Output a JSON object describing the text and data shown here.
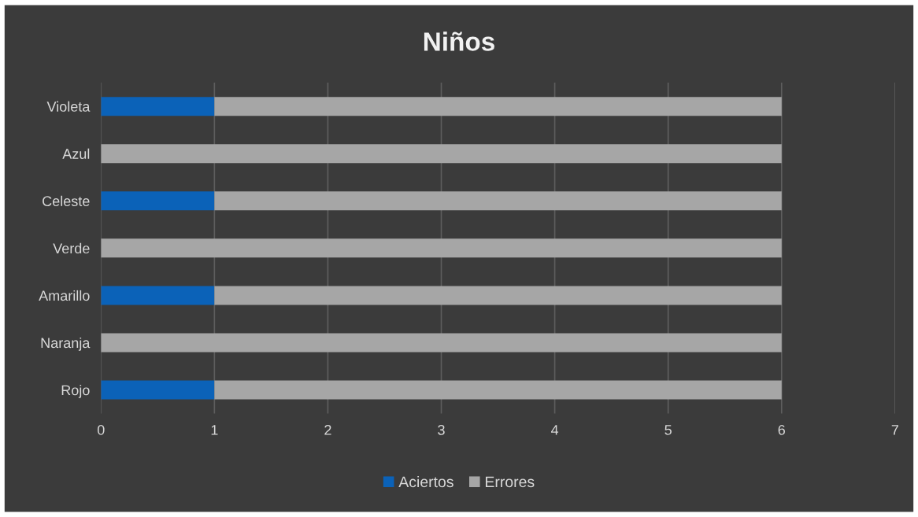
{
  "chart_data": {
    "type": "bar",
    "orientation": "horizontal",
    "stacked": true,
    "title": "Niños",
    "categories": [
      "Violeta",
      "Azul",
      "Celeste",
      "Verde",
      "Amarillo",
      "Naranja",
      "Rojo"
    ],
    "series": [
      {
        "name": "Aciertos",
        "color": "#0b62b8",
        "values": [
          1,
          0,
          1,
          0,
          1,
          0,
          1
        ]
      },
      {
        "name": "Errores",
        "color": "#a6a6a6",
        "values": [
          5,
          6,
          5,
          6,
          5,
          6,
          5
        ]
      }
    ],
    "xlim": [
      0,
      7
    ],
    "xticks": [
      0,
      1,
      2,
      3,
      4,
      5,
      6,
      7
    ],
    "grid": "x",
    "legend": "bottom"
  }
}
